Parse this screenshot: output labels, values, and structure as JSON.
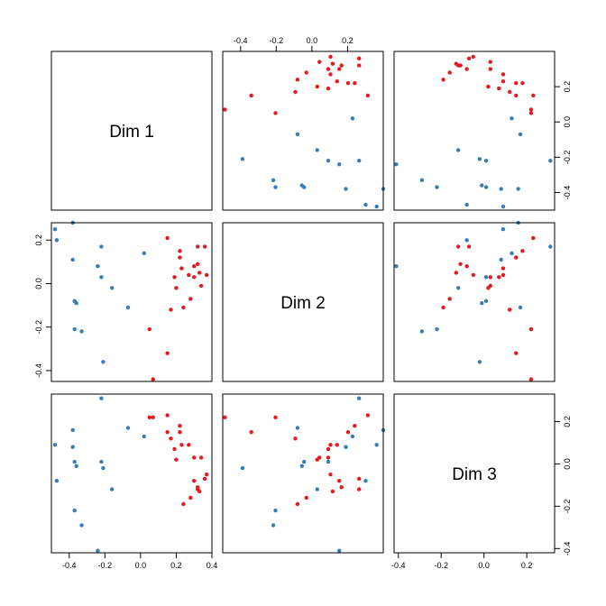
{
  "chart_data": {
    "type": "scatter",
    "variables": [
      "Dim 1",
      "Dim 2",
      "Dim 3"
    ],
    "ranges": {
      "Dim 1": [
        -0.5,
        0.4
      ],
      "Dim 2": [
        -0.45,
        0.28
      ],
      "Dim 3": [
        -0.42,
        0.33
      ]
    },
    "ticks": {
      "Dim 1": [
        -0.4,
        -0.2,
        0.0,
        0.2
      ],
      "Dim 1_bottom": [
        -0.4,
        -0.2,
        0.0,
        0.2,
        0.4
      ],
      "Dim 2": [
        -0.4,
        -0.2,
        0.0,
        0.2
      ],
      "Dim 3": [
        -0.4,
        -0.2,
        0.0,
        0.2
      ]
    },
    "tick_labels": {
      "Dim 1": [
        "-0.4",
        "-0.2",
        "0.0",
        "0.2"
      ],
      "Dim 1_bottom": [
        "-0.4",
        "-0.2",
        "0.0",
        "0.2",
        "0.4"
      ],
      "Dim 2": [
        "-0.4",
        "-0.2",
        "0.0",
        "0.2"
      ],
      "Dim 3": [
        "-0.4",
        "-0.2",
        "0.0",
        "0.2"
      ]
    },
    "grid": false,
    "colors": {
      "red": "#e41a1c",
      "blue": "#377eb8"
    },
    "points": [
      {
        "g": "red",
        "d1": 0.05,
        "d2": -0.21,
        "d3": 0.22
      },
      {
        "g": "red",
        "d1": 0.07,
        "d2": -0.44,
        "d3": 0.22
      },
      {
        "g": "red",
        "d1": 0.15,
        "d2": 0.21,
        "d3": 0.23
      },
      {
        "g": "red",
        "d1": 0.15,
        "d2": -0.32,
        "d3": 0.15
      },
      {
        "g": "red",
        "d1": 0.17,
        "d2": -0.12,
        "d3": 0.12
      },
      {
        "g": "red",
        "d1": 0.19,
        "d2": 0.03,
        "d3": 0.07
      },
      {
        "g": "red",
        "d1": 0.2,
        "d2": -0.02,
        "d3": 0.02
      },
      {
        "g": "red",
        "d1": 0.22,
        "d2": 0.15,
        "d3": 0.18
      },
      {
        "g": "red",
        "d1": 0.22,
        "d2": 0.12,
        "d3": 0.15
      },
      {
        "g": "red",
        "d1": 0.23,
        "d2": 0.07,
        "d3": 0.09
      },
      {
        "g": "red",
        "d1": 0.24,
        "d2": -0.11,
        "d3": -0.19
      },
      {
        "g": "red",
        "d1": 0.27,
        "d2": 0.04,
        "d3": 0.09
      },
      {
        "g": "red",
        "d1": 0.28,
        "d2": -0.07,
        "d3": -0.16
      },
      {
        "g": "red",
        "d1": 0.3,
        "d2": 0.08,
        "d3": -0.08
      },
      {
        "g": "red",
        "d1": 0.3,
        "d2": 0.03,
        "d3": 0.03
      },
      {
        "g": "red",
        "d1": 0.32,
        "d2": 0.09,
        "d3": -0.11
      },
      {
        "g": "red",
        "d1": 0.32,
        "d2": 0.17,
        "d3": -0.12
      },
      {
        "g": "red",
        "d1": 0.33,
        "d2": 0.05,
        "d3": -0.13
      },
      {
        "g": "red",
        "d1": 0.34,
        "d2": -0.01,
        "d3": 0.03
      },
      {
        "g": "red",
        "d1": 0.36,
        "d2": 0.17,
        "d3": -0.07
      },
      {
        "g": "red",
        "d1": 0.37,
        "d2": 0.04,
        "d3": -0.05
      },
      {
        "g": "blue",
        "d1": -0.48,
        "d2": 0.25,
        "d3": 0.09
      },
      {
        "g": "blue",
        "d1": -0.47,
        "d2": 0.2,
        "d3": -0.08
      },
      {
        "g": "blue",
        "d1": -0.38,
        "d2": 0.28,
        "d3": 0.16
      },
      {
        "g": "blue",
        "d1": -0.38,
        "d2": 0.11,
        "d3": 0.08
      },
      {
        "g": "blue",
        "d1": -0.37,
        "d2": -0.08,
        "d3": 0.01
      },
      {
        "g": "blue",
        "d1": -0.37,
        "d2": -0.21,
        "d3": -0.22
      },
      {
        "g": "blue",
        "d1": -0.36,
        "d2": -0.09,
        "d3": -0.01
      },
      {
        "g": "blue",
        "d1": -0.33,
        "d2": -0.22,
        "d3": -0.29
      },
      {
        "g": "blue",
        "d1": -0.24,
        "d2": 0.08,
        "d3": -0.41
      },
      {
        "g": "blue",
        "d1": -0.22,
        "d2": 0.17,
        "d3": 0.31
      },
      {
        "g": "blue",
        "d1": -0.22,
        "d2": 0.03,
        "d3": 0.01
      },
      {
        "g": "blue",
        "d1": -0.21,
        "d2": -0.36,
        "d3": -0.02
      },
      {
        "g": "blue",
        "d1": -0.16,
        "d2": -0.02,
        "d3": -0.12
      },
      {
        "g": "blue",
        "d1": -0.07,
        "d2": -0.11,
        "d3": 0.17
      },
      {
        "g": "blue",
        "d1": 0.02,
        "d2": 0.14,
        "d3": 0.13
      }
    ]
  }
}
